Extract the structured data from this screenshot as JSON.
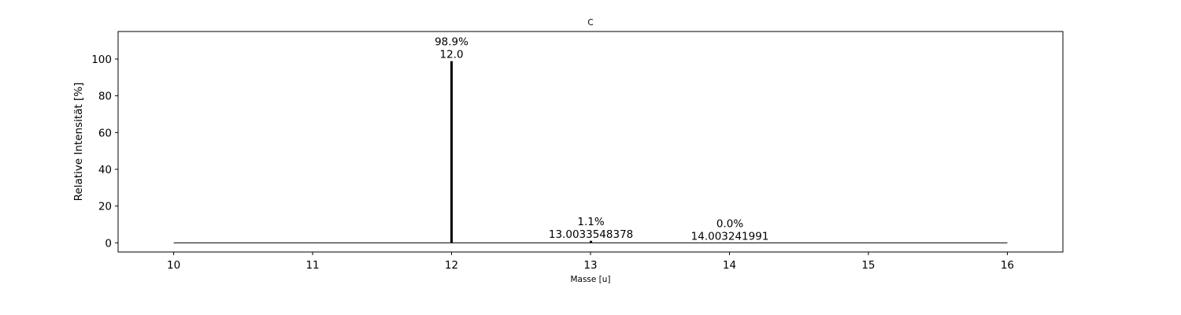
{
  "chart_data": {
    "type": "bar",
    "title": "C",
    "xlabel": "Masse [u]",
    "ylabel": "Relative Intensität [%]",
    "xlim": [
      9.6,
      16.4
    ],
    "ylim": [
      -5,
      115
    ],
    "x_ticks": [
      {
        "value": 10,
        "label": "10"
      },
      {
        "value": 11,
        "label": "11"
      },
      {
        "value": 12,
        "label": "12"
      },
      {
        "value": 13,
        "label": "13"
      },
      {
        "value": 14,
        "label": "14"
      },
      {
        "value": 15,
        "label": "15"
      },
      {
        "value": 16,
        "label": "16"
      }
    ],
    "y_ticks": [
      {
        "value": 0,
        "label": "0"
      },
      {
        "value": 20,
        "label": "20"
      },
      {
        "value": 40,
        "label": "40"
      },
      {
        "value": 60,
        "label": "60"
      },
      {
        "value": 80,
        "label": "80"
      },
      {
        "value": 100,
        "label": "100"
      }
    ],
    "baseline": {
      "x_start": 10,
      "x_end": 16,
      "y": 0
    },
    "peaks": [
      {
        "x": 12.0,
        "y": 98.9,
        "percent_label": "98.9%",
        "mass_label": "12.0"
      },
      {
        "x": 13.0033548378,
        "y": 1.1,
        "percent_label": "1.1%",
        "mass_label": "13.0033548378"
      },
      {
        "x": 14.003241991,
        "y": 0.0,
        "percent_label": "0.0%",
        "mass_label": "14.003241991"
      }
    ],
    "grid": false,
    "colors": {
      "bars": "#000000",
      "axes": "#000000",
      "background": "#ffffff"
    }
  }
}
